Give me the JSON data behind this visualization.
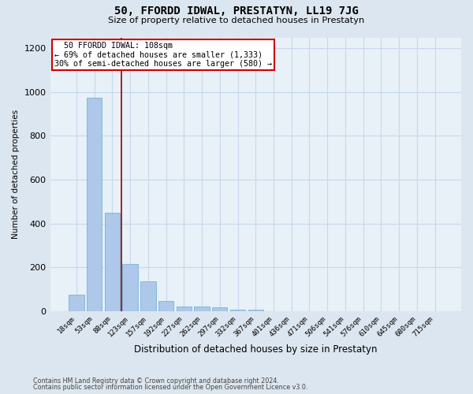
{
  "title1": "50, FFORDD IDWAL, PRESTATYN, LL19 7JG",
  "title2": "Size of property relative to detached houses in Prestatyn",
  "xlabel": "Distribution of detached houses by size in Prestatyn",
  "ylabel": "Number of detached properties",
  "footnote1": "Contains HM Land Registry data © Crown copyright and database right 2024.",
  "footnote2": "Contains public sector information licensed under the Open Government Licence v3.0.",
  "categories": [
    "18sqm",
    "53sqm",
    "88sqm",
    "123sqm",
    "157sqm",
    "192sqm",
    "227sqm",
    "262sqm",
    "297sqm",
    "332sqm",
    "367sqm",
    "401sqm",
    "436sqm",
    "471sqm",
    "506sqm",
    "541sqm",
    "576sqm",
    "610sqm",
    "645sqm",
    "680sqm",
    "715sqm"
  ],
  "values": [
    75,
    975,
    450,
    215,
    135,
    45,
    20,
    20,
    15,
    5,
    5,
    0,
    0,
    0,
    0,
    0,
    0,
    0,
    0,
    0,
    0
  ],
  "bar_color": "#adc8e8",
  "bar_edge_color": "#6aaad4",
  "grid_color": "#c8d8e8",
  "annotation_box_text": "  50 FFORDD IDWAL: 108sqm\n← 69% of detached houses are smaller (1,333)\n30% of semi-detached houses are larger (580) →",
  "annotation_box_color": "#ffffff",
  "annotation_box_edge_color": "#cc0000",
  "redline_color": "#990000",
  "ylim": [
    0,
    1250
  ],
  "yticks": [
    0,
    200,
    400,
    600,
    800,
    1000,
    1200
  ],
  "background_color": "#dce6f0",
  "plot_bg_color": "#e8f0f8"
}
